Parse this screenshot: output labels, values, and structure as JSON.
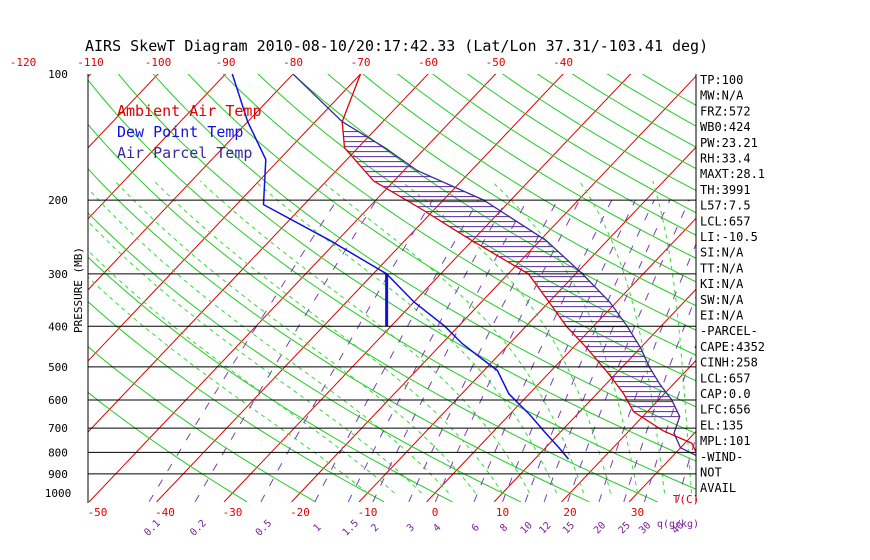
{
  "chart_data": {
    "type": "skewt",
    "title": "AIRS SkewT Diagram 2010-08-10/20:17:42.33 (Lat/Lon 37.31/-103.41 deg)",
    "ylabel": "PRESSURE (MB)",
    "pressure_ticks": [
      100,
      200,
      300,
      400,
      500,
      600,
      700,
      800,
      900,
      1000
    ],
    "top_temp_ticks": [
      -120,
      -110,
      -100,
      -90,
      -80,
      -70,
      -60,
      -50,
      -40
    ],
    "bottom_temp_ticks": [
      -50,
      -40,
      -30,
      -20,
      -10,
      0,
      10,
      20,
      30
    ],
    "bottom_axis_unit": "T(C)",
    "mixing_ratio_ticks": [
      "0.1",
      "0.2",
      "0.5",
      "1",
      "1.5",
      "2",
      "3",
      "4",
      "6",
      "8",
      "10",
      "12",
      "15",
      "20",
      "25",
      "30",
      "40"
    ],
    "mixing_ratio_unit": "q(g/kg)",
    "legend": [
      {
        "label": "Ambient Air Temp",
        "color": "#e00000"
      },
      {
        "label": "Dew Point Temp",
        "color": "#1010e0"
      },
      {
        "label": "Air Parcel Temp",
        "color": "#3a2a9a"
      }
    ],
    "series": [
      {
        "name": "Ambient Air Temp",
        "color": "#e00000",
        "points": [
          [
            840,
            36
          ],
          [
            800,
            33
          ],
          [
            760,
            31
          ],
          [
            710,
            25
          ],
          [
            640,
            18
          ],
          [
            580,
            14
          ],
          [
            520,
            9
          ],
          [
            450,
            2
          ],
          [
            400,
            -4
          ],
          [
            350,
            -10
          ],
          [
            300,
            -17
          ],
          [
            250,
            -30
          ],
          [
            210,
            -42
          ],
          [
            180,
            -53
          ],
          [
            150,
            -62
          ],
          [
            130,
            -66
          ],
          [
            100,
            -70
          ]
        ]
      },
      {
        "name": "Dew Point Temp",
        "color": "#1010e0",
        "points": [
          [
            830,
            15
          ],
          [
            780,
            12
          ],
          [
            720,
            8
          ],
          [
            650,
            3
          ],
          [
            580,
            -3
          ],
          [
            510,
            -8
          ],
          [
            470,
            -13
          ],
          [
            440,
            -17
          ],
          [
            400,
            -22
          ],
          [
            350,
            -30
          ],
          [
            300,
            -38
          ],
          [
            250,
            -51
          ],
          [
            205,
            -66
          ],
          [
            160,
            -72
          ],
          [
            130,
            -80
          ],
          [
            100,
            -89
          ]
        ]
      },
      {
        "name": "Air Parcel Temp",
        "color": "#3a2a9a",
        "points": [
          [
            840,
            36
          ],
          [
            780,
            30
          ],
          [
            720,
            27
          ],
          [
            657,
            25.5
          ],
          [
            600,
            22
          ],
          [
            550,
            18
          ],
          [
            500,
            14
          ],
          [
            450,
            10
          ],
          [
            400,
            5
          ],
          [
            350,
            -1
          ],
          [
            300,
            -9
          ],
          [
            250,
            -19
          ],
          [
            200,
            -34
          ],
          [
            170,
            -48
          ],
          [
            150,
            -56
          ],
          [
            130,
            -66
          ],
          [
            100,
            -80
          ]
        ]
      }
    ],
    "indices": [
      "TP:100",
      "MW:N/A",
      "FRZ:572",
      "WB0:424",
      "PW:23.21",
      "RH:33.4",
      "MAXT:28.1",
      "TH:3991",
      "L57:7.5",
      "LCL:657",
      "LI:-10.5",
      "SI:N/A",
      "TT:N/A",
      "KI:N/A",
      "SW:N/A",
      "EI:N/A",
      "-PARCEL-",
      "CAPE:4352",
      "CINH:258",
      "LCL:657",
      "CAP:0.0",
      "LFC:656",
      "EL:135",
      "MPL:101",
      "-WIND-",
      "NOT",
      "AVAIL"
    ],
    "ylim": [
      1000,
      100
    ],
    "xlim_c": [
      -50,
      30
    ]
  }
}
